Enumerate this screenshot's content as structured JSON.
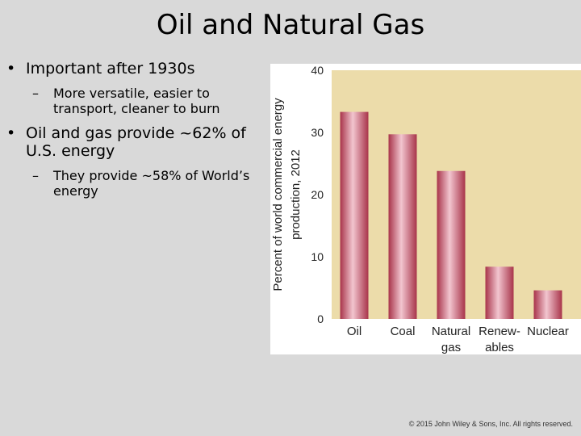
{
  "slide": {
    "title": "Oil and Natural Gas",
    "bullets": [
      {
        "text": "Important after 1930s",
        "sub": [
          "More versatile, easier to transport, cleaner to burn"
        ]
      },
      {
        "text": "Oil and gas provide ~62% of U.S. energy",
        "sub": [
          "They provide ~58% of World’s energy"
        ]
      }
    ],
    "footer": "© 2015 John Wiley & Sons, Inc. All rights reserved."
  },
  "chart_data": {
    "type": "bar",
    "categories": [
      [
        "Oil"
      ],
      [
        "Coal"
      ],
      [
        "Natural",
        "gas"
      ],
      [
        "Renew-",
        "ables"
      ],
      [
        "Nuclear"
      ]
    ],
    "values": [
      33.3,
      29.7,
      23.8,
      8.4,
      4.6
    ],
    "ylabel_lines": [
      "Percent of world commercial energy",
      "production, 2012"
    ],
    "ylim": [
      0,
      40
    ],
    "yticks": [
      0,
      10,
      20,
      30,
      40
    ],
    "colors": {
      "plot_bg": "#ecdcaa",
      "bar_edge": "#a8344a",
      "bar_mid": "#f2c5cf"
    },
    "grid": false
  }
}
